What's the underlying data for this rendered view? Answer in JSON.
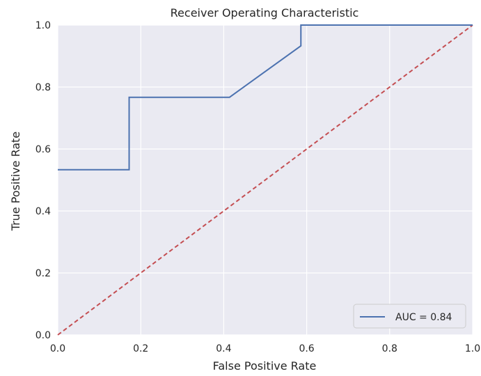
{
  "chart_data": {
    "type": "line",
    "title": "Receiver Operating Characteristic",
    "xlabel": "False Positive Rate",
    "ylabel": "True Positive Rate",
    "xlim": [
      0,
      1
    ],
    "ylim": [
      0,
      1
    ],
    "x_ticks": [
      "0.0",
      "0.2",
      "0.4",
      "0.6",
      "0.8",
      "1.0"
    ],
    "y_ticks": [
      "0.0",
      "0.2",
      "0.4",
      "0.6",
      "0.8",
      "1.0"
    ],
    "grid": true,
    "legend_position": "lower-right",
    "series": [
      {
        "name": "AUC = 0.84",
        "color": "#4c72b0",
        "style": "solid",
        "x": [
          0.0,
          0.172,
          0.172,
          0.414,
          0.586,
          0.586,
          1.0
        ],
        "y": [
          0.533,
          0.533,
          0.767,
          0.767,
          0.933,
          1.0,
          1.0
        ]
      },
      {
        "color": "#c44e52",
        "style": "dashed",
        "x": [
          0,
          1
        ],
        "y": [
          0,
          1
        ]
      }
    ],
    "colors": {
      "plot_background": "#eaeaf2",
      "grid": "#ffffff"
    }
  }
}
